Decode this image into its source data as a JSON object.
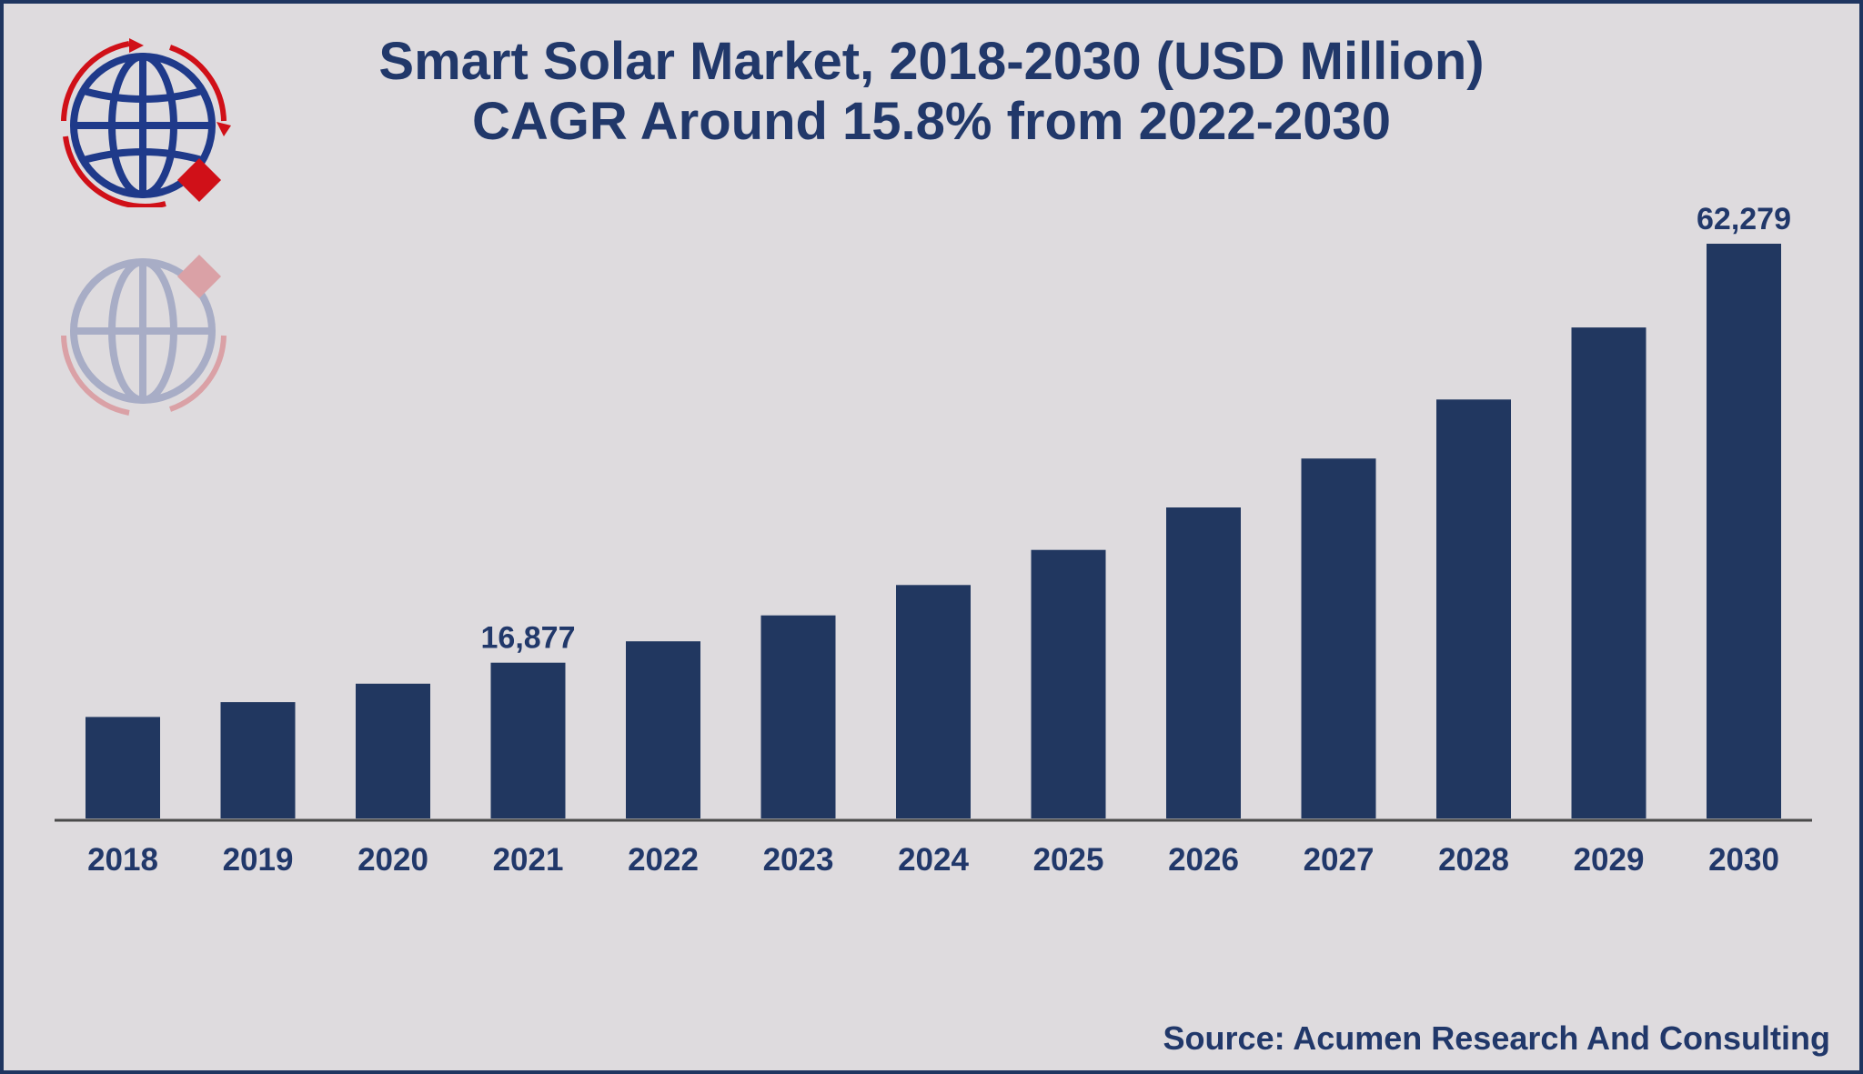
{
  "title_line1": "Smart Solar Market, 2018-2030 (USD Million)",
  "title_line2": "CAGR Around 15.8% from 2022-2030",
  "source": "Source: Acumen Research And Consulting",
  "logo_icon": "globe-logo-icon",
  "colors": {
    "background": "#dedbde",
    "bar": "#213760",
    "text": "#21386a",
    "logo_blue": "#1f3a8a",
    "logo_red": "#d01018"
  },
  "chart_data": {
    "type": "bar",
    "title": "Smart Solar Market, 2018-2030 (USD Million)",
    "subtitle": "CAGR Around 15.8% from 2022-2030",
    "xlabel": "",
    "ylabel": "",
    "categories": [
      "2018",
      "2019",
      "2020",
      "2021",
      "2022",
      "2023",
      "2024",
      "2025",
      "2026",
      "2027",
      "2028",
      "2029",
      "2030"
    ],
    "values": [
      11000,
      12600,
      14600,
      16877,
      19200,
      22000,
      25300,
      29100,
      33700,
      39000,
      45400,
      53200,
      62279
    ],
    "data_labels": [
      {
        "category": "2021",
        "text": "16,877"
      },
      {
        "category": "2030",
        "text": "62,279"
      }
    ],
    "ylim": [
      0,
      62279
    ],
    "grid": false,
    "legend": "none"
  }
}
